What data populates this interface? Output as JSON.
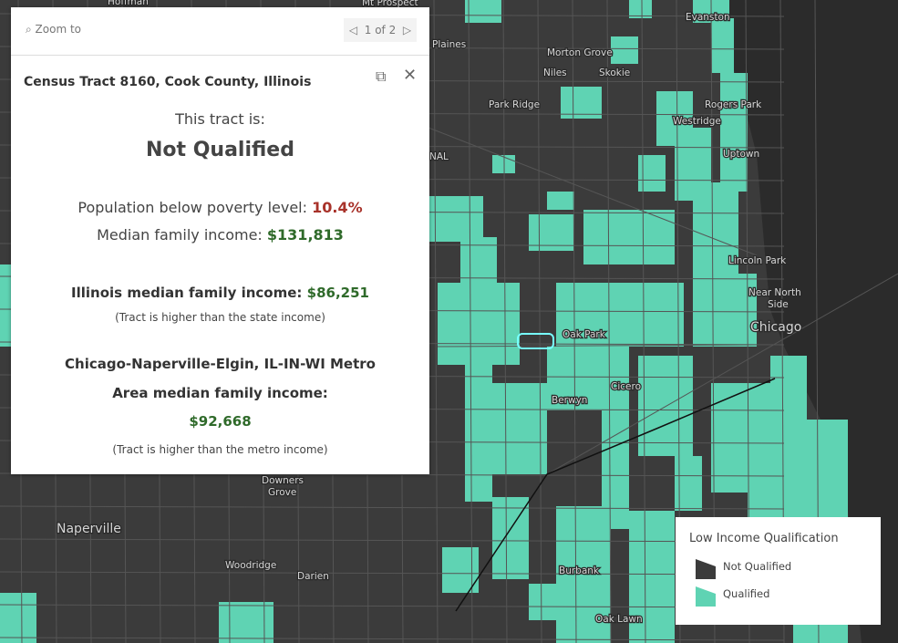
{
  "popup": {
    "zoom_to": "Zoom to",
    "pager": "1 of 2",
    "title": "Census Tract 8160, Cook County, Illinois",
    "intro": "This tract is:",
    "status": "Not Qualified",
    "poverty_label": "Population below poverty level:",
    "poverty_value": "10.4%",
    "income_label": "Median family income:",
    "income_value": "$131,813",
    "state_label": "Illinois median family income:",
    "state_value": "$86,251",
    "state_note": "(Tract is higher than the state income)",
    "metro_line1": "Chicago-Naperville-Elgin, IL-IN-WI Metro",
    "metro_line2": "Area median family income:",
    "metro_value": "$92,668",
    "metro_note": "(Tract is higher than the metro income)"
  },
  "map_labels": [
    "Hoffman",
    "Mt Prospect",
    "Evanston",
    "Plaines",
    "Morton Grove",
    "Niles",
    "Skokie",
    "Park Ridge",
    "Rogers Park",
    "Westridge",
    "Uptown",
    "NAL",
    "Lincoln Park",
    "Near North",
    "Side",
    "Chicago",
    "Oak Park",
    "Cicero",
    "Berwyn",
    "Downers",
    "Grove",
    "Naperville",
    "Woodridge",
    "Darien",
    "Burbank",
    "Oak Lawn"
  ],
  "legend": {
    "title": "Low Income Qualification",
    "items": [
      "Not Qualified",
      "Qualified"
    ]
  }
}
